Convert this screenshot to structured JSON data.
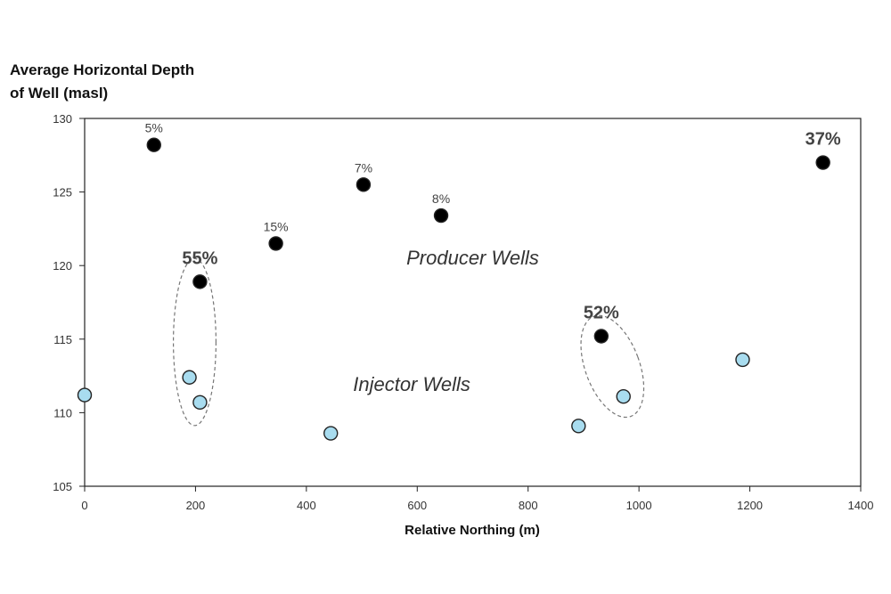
{
  "chart_data": {
    "type": "scatter",
    "title": "",
    "ylabel_lines": [
      "Average Horizontal Depth",
      "of Well (masl)"
    ],
    "xlabel": "Relative Northing (m)",
    "xlim": [
      0,
      1400
    ],
    "ylim": [
      105,
      130
    ],
    "xticks": [
      0,
      200,
      400,
      600,
      800,
      1000,
      1200,
      1400
    ],
    "yticks": [
      105,
      110,
      115,
      120,
      125,
      130
    ],
    "series": [
      {
        "name": "Producer Wells",
        "color": "#000000",
        "points": [
          {
            "x": 125,
            "y": 128.2,
            "label": "5%",
            "big": false
          },
          {
            "x": 345,
            "y": 121.5,
            "label": "15%",
            "big": false
          },
          {
            "x": 208,
            "y": 118.9,
            "label": "55%",
            "big": true
          },
          {
            "x": 503,
            "y": 125.5,
            "label": "7%",
            "big": false
          },
          {
            "x": 643,
            "y": 123.4,
            "label": "8%",
            "big": false
          },
          {
            "x": 932,
            "y": 115.2,
            "label": "52%",
            "big": true
          },
          {
            "x": 1332,
            "y": 127.0,
            "label": "37%",
            "big": true
          }
        ]
      },
      {
        "name": "Injector Wells",
        "color": "#a8dcef",
        "points": [
          {
            "x": 0,
            "y": 111.2
          },
          {
            "x": 189,
            "y": 112.4
          },
          {
            "x": 208,
            "y": 110.7
          },
          {
            "x": 444,
            "y": 108.6
          },
          {
            "x": 891,
            "y": 109.1
          },
          {
            "x": 972,
            "y": 111.1
          },
          {
            "x": 1187,
            "y": 113.6
          }
        ]
      }
    ],
    "annotations": [
      {
        "text": "Producer Wells",
        "x": 700,
        "y": 120.5
      },
      {
        "text": "Injector Wells",
        "x": 590,
        "y": 111.9
      }
    ],
    "groupings": [
      {
        "members": [
          "55%",
          "injector-189",
          "injector-208"
        ]
      },
      {
        "members": [
          "52%",
          "injector-972"
        ]
      }
    ]
  }
}
